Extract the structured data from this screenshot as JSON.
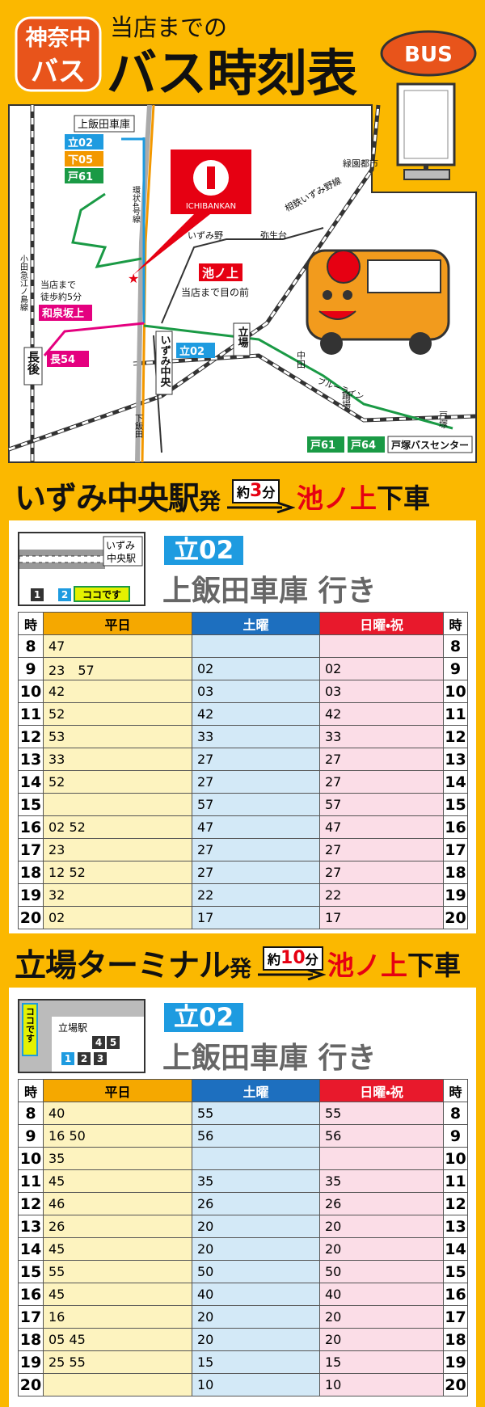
{
  "header": {
    "badge": [
      "神奈中",
      "バス"
    ],
    "subtitle": "当店までの",
    "title": "バス時刻表",
    "bus_sign": "BUS"
  },
  "map": {
    "labels": [
      "上飯田車庫",
      "立02",
      "下05",
      "戸61",
      "環状4号線",
      "ICHIBANKAN",
      "緑園都市",
      "相鉄いずみ野線",
      "いずみ野",
      "弥生台",
      "小田急江ノ島線",
      "当店まで",
      "徒歩約5分",
      "和泉坂上",
      "池ノ上",
      "当店まで目の前",
      "長後",
      "長54",
      "いずみ中央",
      "立02",
      "立場",
      "中田",
      "ブルーライン",
      "踊場",
      "戸塚",
      "下飯田",
      "戸61",
      "戸64",
      "戸塚バスセンター"
    ]
  },
  "sections": [
    {
      "heading": {
        "station": "いずみ中央駅",
        "departure": "発",
        "time_prefix": "約",
        "time_number": "3",
        "time_unit": "分",
        "stop": "池ノ上",
        "alight": "下車"
      },
      "diagram": {
        "labels": [
          "いずみ",
          "中央駅",
          "1",
          "2",
          "ココです"
        ]
      },
      "route": "立02",
      "destination": "上飯田車庫 行き",
      "table": {
        "columns": [
          "時",
          "平日",
          "土曜",
          "日曜・祝",
          "時"
        ],
        "rows": [
          [
            "8",
            "47",
            null,
            null
          ],
          [
            "9",
            "23　57",
            "02",
            "02"
          ],
          [
            "10",
            "42",
            "03",
            "03"
          ],
          [
            "11",
            "52",
            "42",
            "42"
          ],
          [
            "12",
            "53",
            "33",
            "33"
          ],
          [
            "13",
            "33",
            "27",
            "27"
          ],
          [
            "14",
            "52",
            "27",
            "27"
          ],
          [
            "15",
            null,
            "57",
            "57"
          ],
          [
            "16",
            "02 52",
            "47",
            "47"
          ],
          [
            "17",
            "23",
            "27",
            "27"
          ],
          [
            "18",
            "12 52",
            "27",
            "27"
          ],
          [
            "19",
            "32",
            "22",
            "22"
          ],
          [
            "20",
            "02",
            "17",
            "17"
          ]
        ]
      }
    },
    {
      "heading": {
        "station": "立場ターミナル",
        "departure": "発",
        "time_prefix": "約",
        "time_number": "10",
        "time_unit": "分",
        "stop": "池ノ上",
        "alight": "下車"
      },
      "diagram": {
        "labels": [
          "ココです",
          "立場駅",
          "4",
          "5",
          "1",
          "2",
          "3"
        ]
      },
      "route": "立02",
      "destination": "上飯田車庫 行き",
      "table": {
        "columns": [
          "時",
          "平日",
          "土曜",
          "日曜・祝",
          "時"
        ],
        "rows": [
          [
            "8",
            "40",
            "55",
            "55"
          ],
          [
            "9",
            "16 50",
            "56",
            "56"
          ],
          [
            "10",
            "35",
            null,
            null
          ],
          [
            "11",
            "45",
            "35",
            "35"
          ],
          [
            "12",
            "46",
            "26",
            "26"
          ],
          [
            "13",
            "26",
            "20",
            "20"
          ],
          [
            "14",
            "45",
            "20",
            "20"
          ],
          [
            "15",
            "55",
            "50",
            "50"
          ],
          [
            "16",
            "45",
            "40",
            "40"
          ],
          [
            "17",
            "16",
            "20",
            "20"
          ],
          [
            "18",
            "05 45",
            "20",
            "20"
          ],
          [
            "19",
            "25 55",
            "15",
            "15"
          ],
          [
            "20",
            null,
            "10",
            "10"
          ]
        ]
      }
    }
  ]
}
